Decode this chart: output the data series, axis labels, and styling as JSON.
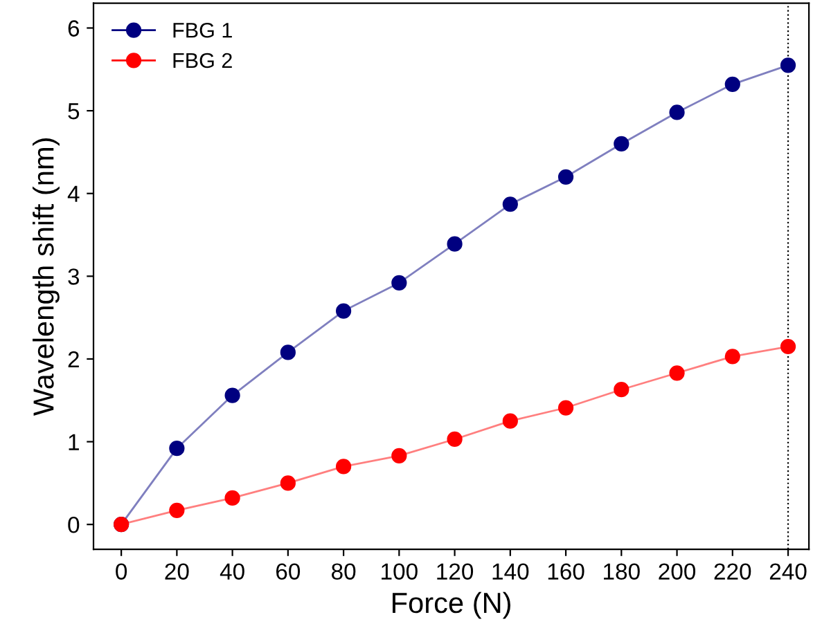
{
  "chart_data": {
    "type": "line",
    "xlabel": "Force (N)",
    "ylabel": "Wavelength shift (nm)",
    "x": [
      0,
      20,
      40,
      60,
      80,
      100,
      120,
      140,
      160,
      180,
      200,
      220,
      240
    ],
    "series": [
      {
        "name": "FBG 1",
        "color": "#000080",
        "values": [
          0,
          0.92,
          1.56,
          2.08,
          2.58,
          2.92,
          3.39,
          3.87,
          4.2,
          4.6,
          4.98,
          5.32,
          5.55
        ]
      },
      {
        "name": "FBG 2",
        "color": "#ff0000",
        "values": [
          0,
          0.17,
          0.32,
          0.5,
          0.7,
          0.83,
          1.03,
          1.25,
          1.41,
          1.63,
          1.83,
          2.03,
          2.15
        ]
      }
    ],
    "xlim": [
      -10,
      247.5
    ],
    "ylim": [
      -0.3,
      6.3
    ],
    "xticks": [
      0,
      20,
      40,
      60,
      80,
      100,
      120,
      140,
      160,
      180,
      200,
      220,
      240
    ],
    "yticks": [
      0,
      1,
      2,
      3,
      4,
      5,
      6
    ],
    "ref_lines": [
      {
        "axis": "x",
        "value": 240,
        "color": "#000000",
        "line_style": "dotted"
      }
    ],
    "marker": "circle",
    "line_style": "solid",
    "grid": false,
    "legend": "top left"
  }
}
